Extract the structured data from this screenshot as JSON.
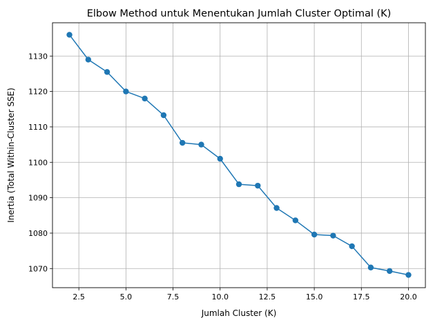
{
  "chart_data": {
    "type": "line",
    "title": "Elbow Method untuk Menentukan Jumlah Cluster Optimal (K)",
    "xlabel": "Jumlah Cluster (K)",
    "ylabel": "Inertia (Total Within-Cluster SSE)",
    "xlim": [
      1.1,
      20.9
    ],
    "ylim": [
      1064.6,
      1139.4
    ],
    "xticks": [
      2.5,
      5.0,
      7.5,
      10.0,
      12.5,
      15.0,
      17.5,
      20.0
    ],
    "xtick_labels": [
      "2.5",
      "5.0",
      "7.5",
      "10.0",
      "12.5",
      "15.0",
      "17.5",
      "20.0"
    ],
    "yticks": [
      1070,
      1080,
      1090,
      1100,
      1110,
      1120,
      1130
    ],
    "ytick_labels": [
      "1070",
      "1080",
      "1090",
      "1100",
      "1110",
      "1120",
      "1130"
    ],
    "grid": true,
    "marker": "circle",
    "color": "#1f77b4",
    "series": [
      {
        "x": [
          2,
          3,
          4,
          5,
          6,
          7,
          8,
          9,
          10,
          11,
          12,
          13,
          14,
          15,
          16,
          17,
          18,
          19,
          20
        ],
        "values": [
          1136.0,
          1129.0,
          1125.5,
          1120.0,
          1118.0,
          1113.3,
          1105.5,
          1105.0,
          1101.0,
          1093.8,
          1093.4,
          1087.1,
          1083.6,
          1079.6,
          1079.3,
          1076.3,
          1070.3,
          1069.3,
          1068.2
        ]
      }
    ]
  }
}
